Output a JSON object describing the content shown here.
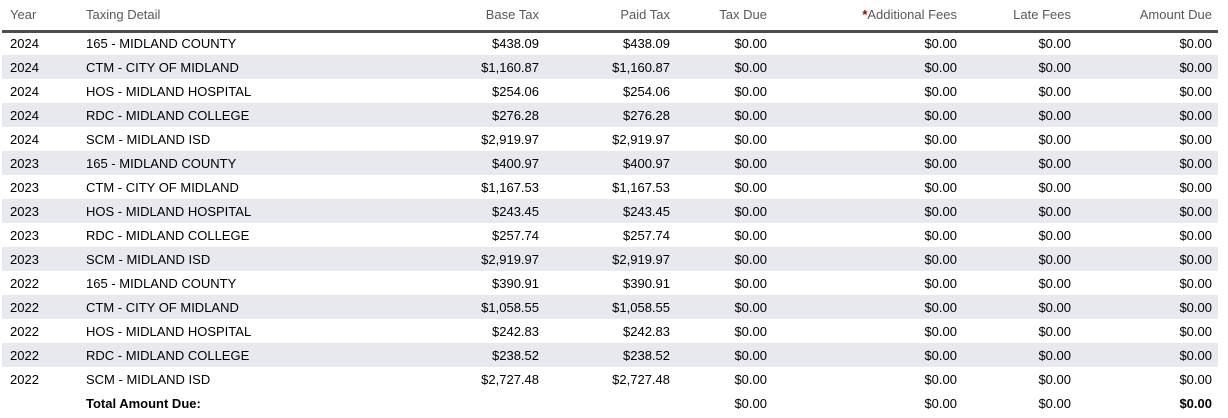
{
  "colors": {
    "stripe_row": "#e8e8ef",
    "header_text": "#595959",
    "header_border": "#4d4d4d",
    "body_text": "#000000",
    "asterisk": "#990000"
  },
  "table": {
    "header_asterisk": "*",
    "columns": [
      {
        "key": "year",
        "label": "Year",
        "align": "left"
      },
      {
        "key": "detail",
        "label": "Taxing Detail",
        "align": "left"
      },
      {
        "key": "base_tax",
        "label": "Base Tax",
        "align": "right"
      },
      {
        "key": "paid_tax",
        "label": "Paid Tax",
        "align": "right"
      },
      {
        "key": "tax_due",
        "label": "Tax Due",
        "align": "right"
      },
      {
        "key": "additional_fees",
        "label": "Additional Fees",
        "align": "right"
      },
      {
        "key": "late_fees",
        "label": "Late Fees",
        "align": "right"
      },
      {
        "key": "amount_due",
        "label": "Amount Due",
        "align": "right"
      }
    ],
    "rows": [
      {
        "year": "2024",
        "detail": "165 - MIDLAND COUNTY",
        "base_tax": "$438.09",
        "paid_tax": "$438.09",
        "tax_due": "$0.00",
        "additional_fees": "$0.00",
        "late_fees": "$0.00",
        "amount_due": "$0.00"
      },
      {
        "year": "2024",
        "detail": "CTM - CITY OF MIDLAND",
        "base_tax": "$1,160.87",
        "paid_tax": "$1,160.87",
        "tax_due": "$0.00",
        "additional_fees": "$0.00",
        "late_fees": "$0.00",
        "amount_due": "$0.00"
      },
      {
        "year": "2024",
        "detail": "HOS - MIDLAND HOSPITAL",
        "base_tax": "$254.06",
        "paid_tax": "$254.06",
        "tax_due": "$0.00",
        "additional_fees": "$0.00",
        "late_fees": "$0.00",
        "amount_due": "$0.00"
      },
      {
        "year": "2024",
        "detail": "RDC - MIDLAND COLLEGE",
        "base_tax": "$276.28",
        "paid_tax": "$276.28",
        "tax_due": "$0.00",
        "additional_fees": "$0.00",
        "late_fees": "$0.00",
        "amount_due": "$0.00"
      },
      {
        "year": "2024",
        "detail": "SCM - MIDLAND ISD",
        "base_tax": "$2,919.97",
        "paid_tax": "$2,919.97",
        "tax_due": "$0.00",
        "additional_fees": "$0.00",
        "late_fees": "$0.00",
        "amount_due": "$0.00"
      },
      {
        "year": "2023",
        "detail": "165 - MIDLAND COUNTY",
        "base_tax": "$400.97",
        "paid_tax": "$400.97",
        "tax_due": "$0.00",
        "additional_fees": "$0.00",
        "late_fees": "$0.00",
        "amount_due": "$0.00"
      },
      {
        "year": "2023",
        "detail": "CTM - CITY OF MIDLAND",
        "base_tax": "$1,167.53",
        "paid_tax": "$1,167.53",
        "tax_due": "$0.00",
        "additional_fees": "$0.00",
        "late_fees": "$0.00",
        "amount_due": "$0.00"
      },
      {
        "year": "2023",
        "detail": "HOS - MIDLAND HOSPITAL",
        "base_tax": "$243.45",
        "paid_tax": "$243.45",
        "tax_due": "$0.00",
        "additional_fees": "$0.00",
        "late_fees": "$0.00",
        "amount_due": "$0.00"
      },
      {
        "year": "2023",
        "detail": "RDC - MIDLAND COLLEGE",
        "base_tax": "$257.74",
        "paid_tax": "$257.74",
        "tax_due": "$0.00",
        "additional_fees": "$0.00",
        "late_fees": "$0.00",
        "amount_due": "$0.00"
      },
      {
        "year": "2023",
        "detail": "SCM - MIDLAND ISD",
        "base_tax": "$2,919.97",
        "paid_tax": "$2,919.97",
        "tax_due": "$0.00",
        "additional_fees": "$0.00",
        "late_fees": "$0.00",
        "amount_due": "$0.00"
      },
      {
        "year": "2022",
        "detail": "165 - MIDLAND COUNTY",
        "base_tax": "$390.91",
        "paid_tax": "$390.91",
        "tax_due": "$0.00",
        "additional_fees": "$0.00",
        "late_fees": "$0.00",
        "amount_due": "$0.00"
      },
      {
        "year": "2022",
        "detail": "CTM - CITY OF MIDLAND",
        "base_tax": "$1,058.55",
        "paid_tax": "$1,058.55",
        "tax_due": "$0.00",
        "additional_fees": "$0.00",
        "late_fees": "$0.00",
        "amount_due": "$0.00"
      },
      {
        "year": "2022",
        "detail": "HOS - MIDLAND HOSPITAL",
        "base_tax": "$242.83",
        "paid_tax": "$242.83",
        "tax_due": "$0.00",
        "additional_fees": "$0.00",
        "late_fees": "$0.00",
        "amount_due": "$0.00"
      },
      {
        "year": "2022",
        "detail": "RDC - MIDLAND COLLEGE",
        "base_tax": "$238.52",
        "paid_tax": "$238.52",
        "tax_due": "$0.00",
        "additional_fees": "$0.00",
        "late_fees": "$0.00",
        "amount_due": "$0.00"
      },
      {
        "year": "2022",
        "detail": "SCM - MIDLAND ISD",
        "base_tax": "$2,727.48",
        "paid_tax": "$2,727.48",
        "tax_due": "$0.00",
        "additional_fees": "$0.00",
        "late_fees": "$0.00",
        "amount_due": "$0.00"
      }
    ],
    "total_row": {
      "label": "Total Amount Due:",
      "tax_due": "$0.00",
      "additional_fees": "$0.00",
      "late_fees": "$0.00",
      "amount_due": "$0.00"
    }
  }
}
